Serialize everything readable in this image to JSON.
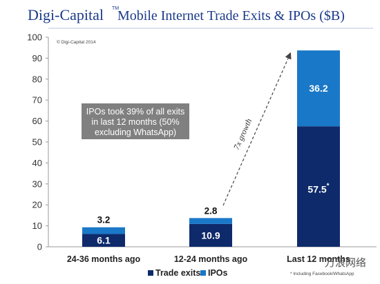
{
  "header": {
    "brand": "Digi-Capital",
    "trademark": "TM",
    "title": "Mobile Internet Trade Exits & IPOs ($B)"
  },
  "copyright": "© Digi-Capital 2014",
  "footnote": "* Including Facebook/WhatsApp",
  "annotation": {
    "lines": [
      "IPOs took 39% of all exits",
      "in last 12 months (50%",
      "excluding WhatsApp)"
    ],
    "bg_color": "#808080"
  },
  "growth_label": "7x growth",
  "watermark": "万浪网络",
  "colors": {
    "trade_exits": "#0e2a6b",
    "ipos": "#1a78c8"
  },
  "chart_data": {
    "type": "bar",
    "stacked": true,
    "title": "Mobile Internet Trade Exits & IPOs ($B)",
    "categories": [
      "24-36 months ago",
      "12-24 months ago",
      "Last 12 months"
    ],
    "series": [
      {
        "name": "Trade exits",
        "values": [
          6.1,
          10.9,
          57.5
        ],
        "labels": [
          "6.1",
          "10.9",
          "57.5*"
        ]
      },
      {
        "name": "IPOs",
        "values": [
          3.2,
          2.8,
          36.2
        ],
        "labels": [
          "3.2",
          "2.8",
          "36.2"
        ]
      }
    ],
    "ylim": [
      0,
      100
    ],
    "yticks": [
      0,
      10,
      20,
      30,
      40,
      50,
      60,
      70,
      80,
      90,
      100
    ],
    "grid": false,
    "legend_position": "bottom"
  }
}
